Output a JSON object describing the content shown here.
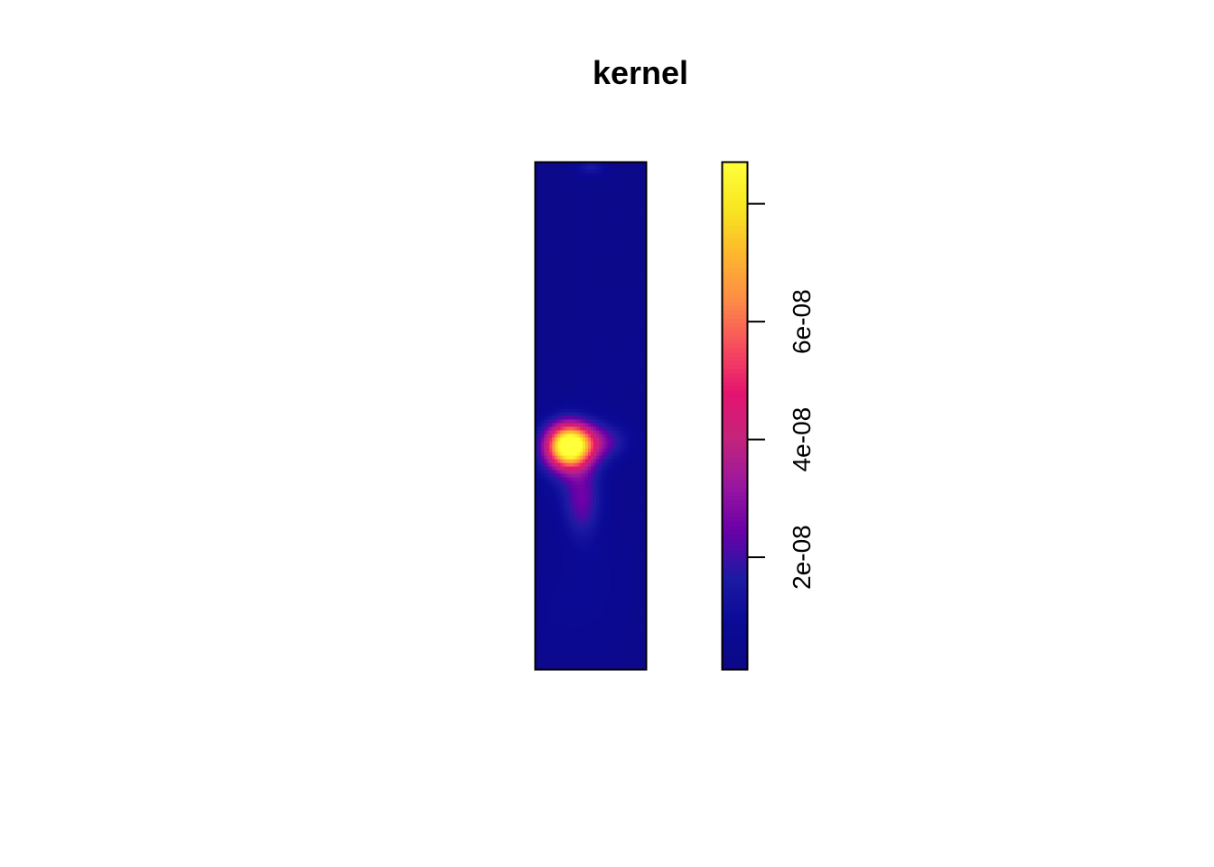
{
  "chart_data": {
    "type": "heatmap",
    "title": "kernel",
    "xlabel": "",
    "ylabel": "",
    "colorbar": {
      "range": [
        1e-09,
        8.7e-08
      ],
      "ticks": [
        2e-08,
        4e-08,
        6e-08,
        8e-08
      ],
      "tick_labels": [
        "2e-08",
        "4e-08",
        "6e-08",
        ""
      ],
      "palette": [
        "#0D0887",
        "#0A0A96",
        "#1E1AA3",
        "#6A00A8",
        "#9A169F",
        "#C3247C",
        "#E4146F",
        "#F74D5E",
        "#FD8B47",
        "#FDB72E",
        "#F8E621",
        "#FFFF3A"
      ]
    },
    "background_value": 3e-09,
    "hotspots": [
      {
        "x": 0.3,
        "y": 0.44,
        "sx": 0.14,
        "sy": 0.03,
        "value": 8.4e-08
      },
      {
        "x": 0.55,
        "y": 0.45,
        "sx": 0.2,
        "sy": 0.025,
        "value": 1.9e-08
      },
      {
        "x": 0.42,
        "y": 0.33,
        "sx": 0.12,
        "sy": 0.05,
        "value": 1.8e-08
      },
      {
        "x": 0.3,
        "y": 0.42,
        "sx": 0.25,
        "sy": 0.06,
        "value": 1e-08
      },
      {
        "x": 0.5,
        "y": 0.2,
        "sx": 0.3,
        "sy": 0.08,
        "value": 4e-09
      },
      {
        "x": 0.2,
        "y": 0.1,
        "sx": 0.4,
        "sy": 0.06,
        "value": 3e-09
      },
      {
        "x": 0.5,
        "y": 0.99,
        "sx": 0.1,
        "sy": 0.012,
        "value": 1.2e-08
      },
      {
        "x": 0.7,
        "y": 0.6,
        "sx": 0.3,
        "sy": 0.08,
        "value": 1.5e-09
      }
    ]
  }
}
